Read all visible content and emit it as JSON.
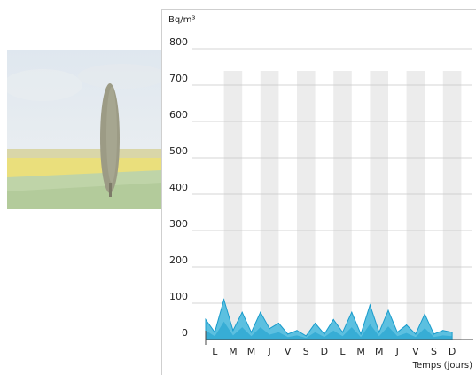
{
  "chart_data": {
    "type": "area",
    "y_unit_label": "Bq/m³",
    "xlabel": "Temps (jours)",
    "ylim": [
      0,
      800
    ],
    "yticks": [
      0,
      100,
      200,
      300,
      400,
      500,
      600,
      700,
      800
    ],
    "categories": [
      "L",
      "M",
      "M",
      "J",
      "V",
      "S",
      "D",
      "L",
      "M",
      "M",
      "J",
      "V",
      "S",
      "D"
    ],
    "x": [
      0,
      0.5,
      1,
      1.5,
      2,
      2.5,
      3,
      3.5,
      4,
      4.5,
      5,
      5.5,
      6,
      6.5,
      7,
      7.5,
      8,
      8.5,
      9,
      9.5,
      10,
      10.5,
      11,
      11.5,
      12,
      12.5,
      13,
      13.5
    ],
    "values": [
      55,
      20,
      110,
      25,
      75,
      20,
      75,
      30,
      45,
      15,
      25,
      10,
      45,
      15,
      55,
      20,
      75,
      15,
      95,
      20,
      80,
      20,
      40,
      15,
      70,
      15,
      25,
      20
    ],
    "grid": "horizontal",
    "alternate_day_shading": true,
    "colors": {
      "fill": "#5cc0e0",
      "fill_dark": "#1a9ccc",
      "day_band": "#ececec",
      "grid": "#c8c8c8",
      "axis": "#444444"
    }
  }
}
